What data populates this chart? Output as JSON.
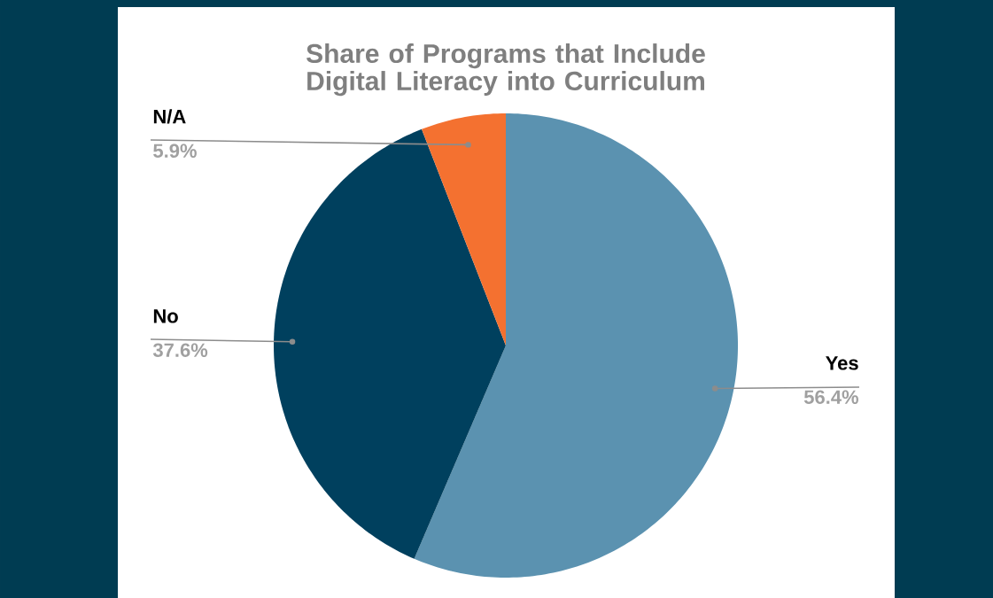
{
  "chart_data": {
    "type": "pie",
    "title": "Share of Programs that Include Digital Literacy into Curriculum",
    "categories": [
      "Yes",
      "No",
      "N/A"
    ],
    "values": [
      56.4,
      37.6,
      5.9
    ],
    "colors": [
      "#5b92b0",
      "#00405e",
      "#f47130"
    ],
    "value_labels": [
      "56.4%",
      "37.6%",
      "5.9%"
    ]
  }
}
